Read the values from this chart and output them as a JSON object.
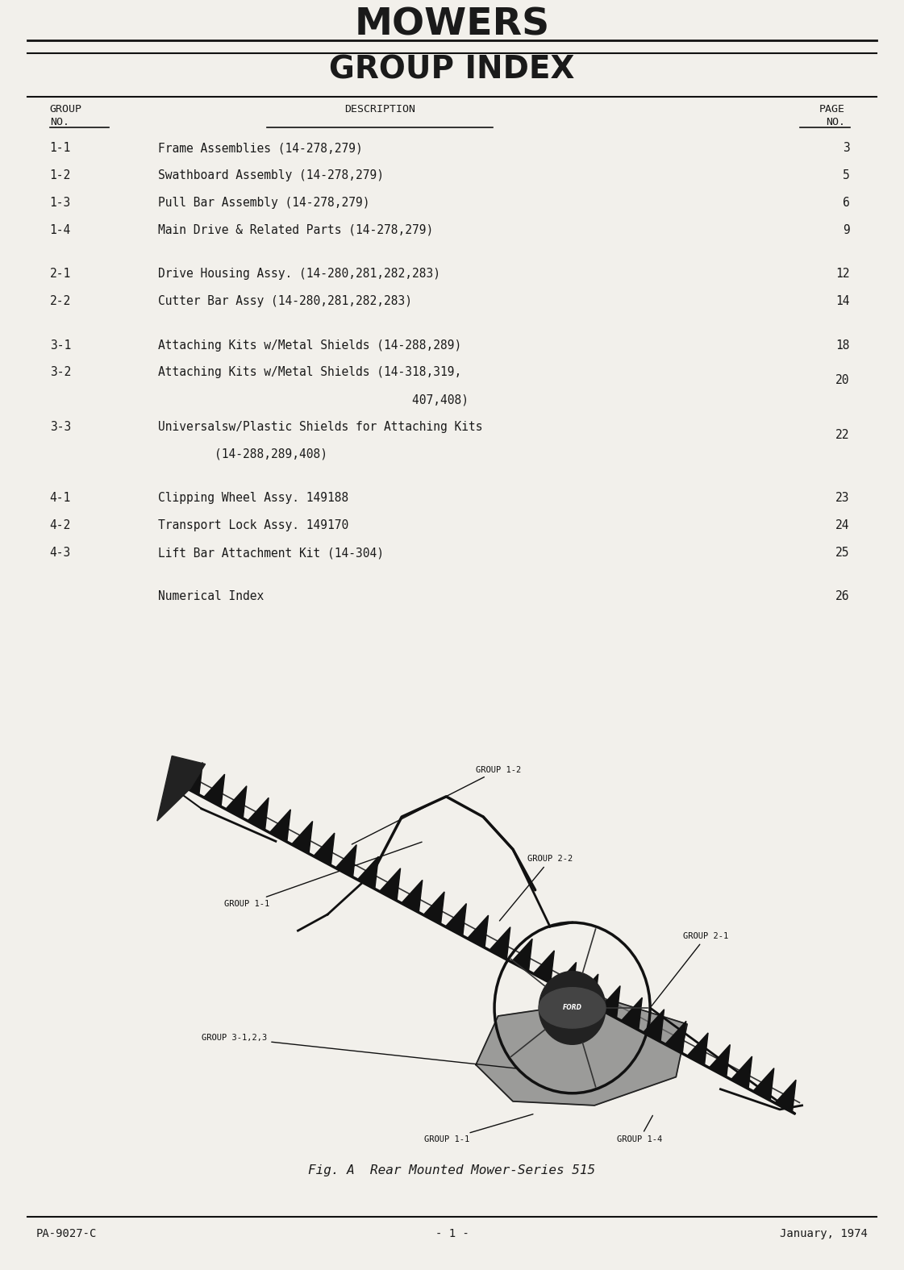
{
  "title1": "MOWERS",
  "title2": "GROUP INDEX",
  "bg_color": "#f2f0eb",
  "text_color": "#1a1a1a",
  "border_color": "#111111",
  "footer_left": "PA-9027-C",
  "footer_center": "- 1 -",
  "footer_right": "January, 1974",
  "diagram_caption": "Fig. A  Rear Mounted Mower-Series 515",
  "row_configs": [
    {
      "group": "1-1",
      "desc1": "Frame Assemblies (14-278,279)",
      "desc2": "",
      "page": "3",
      "gap_after": false
    },
    {
      "group": "1-2",
      "desc1": "Swathboard Assembly (14-278,279)",
      "desc2": "",
      "page": "5",
      "gap_after": false
    },
    {
      "group": "1-3",
      "desc1": "Pull Bar Assembly (14-278,279)",
      "desc2": "",
      "page": "6",
      "gap_after": false
    },
    {
      "group": "1-4",
      "desc1": "Main Drive & Related Parts (14-278,279)",
      "desc2": "",
      "page": "9",
      "gap_after": true
    },
    {
      "group": "2-1",
      "desc1": "Drive Housing Assy. (14-280,281,282,283)",
      "desc2": "",
      "page": "12",
      "gap_after": false
    },
    {
      "group": "2-2",
      "desc1": "Cutter Bar Assy (14-280,281,282,283)",
      "desc2": "",
      "page": "14",
      "gap_after": true
    },
    {
      "group": "3-1",
      "desc1": "Attaching Kits w/Metal Shields (14-288,289)",
      "desc2": "",
      "page": "18",
      "gap_after": false
    },
    {
      "group": "3-2",
      "desc1": "Attaching Kits w/Metal Shields (14-318,319,",
      "desc2": "                                    407,408)",
      "page": "20",
      "gap_after": false
    },
    {
      "group": "3-3",
      "desc1": "Universalsw/Plastic Shields for Attaching Kits",
      "desc2": "        (14-288,289,408)",
      "page": "22",
      "gap_after": true
    },
    {
      "group": "4-1",
      "desc1": "Clipping Wheel Assy. 149188",
      "desc2": "",
      "page": "23",
      "gap_after": false
    },
    {
      "group": "4-2",
      "desc1": "Transport Lock Assy. 149170",
      "desc2": "",
      "page": "24",
      "gap_after": false
    },
    {
      "group": "4-3",
      "desc1": "Lift Bar Attachment Kit (14-304)",
      "desc2": "",
      "page": "25",
      "gap_after": true
    },
    {
      "group": "",
      "desc1": "Numerical Index",
      "desc2": "",
      "page": "26",
      "gap_after": false
    }
  ]
}
